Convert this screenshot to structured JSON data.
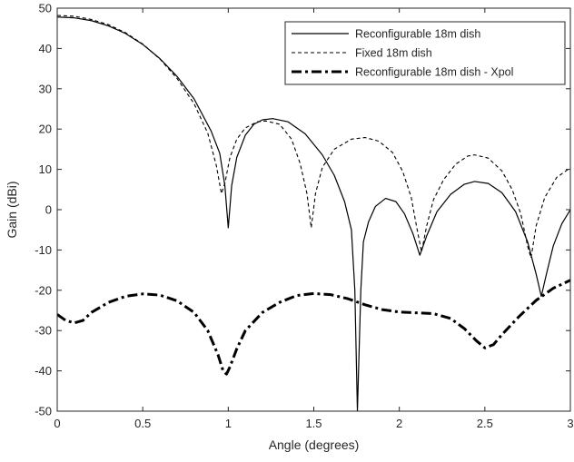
{
  "chart_data": {
    "type": "line",
    "title": "",
    "xlabel": "Angle (degrees)",
    "ylabel": "Gain (dBi)",
    "xlim": [
      0,
      3
    ],
    "ylim": [
      -50,
      50
    ],
    "xticks": [
      0,
      0.5,
      1,
      1.5,
      2,
      2.5,
      3
    ],
    "yticks": [
      -50,
      -40,
      -30,
      -20,
      -10,
      0,
      10,
      20,
      30,
      40,
      50
    ],
    "xtick_labels": [
      "0",
      "0.5",
      "1",
      "1.5",
      "2",
      "2.5",
      "3"
    ],
    "ytick_labels": [
      "-50",
      "-40",
      "-30",
      "-20",
      "-10",
      "0",
      "10",
      "20",
      "30",
      "40",
      "50"
    ],
    "grid": false,
    "legend_position": "top-right",
    "series": [
      {
        "name": "Reconfigurable 18m dish",
        "style": "solid",
        "color": "#000000",
        "points": [
          [
            0,
            47.8
          ],
          [
            0.1,
            47.6
          ],
          [
            0.2,
            46.9
          ],
          [
            0.3,
            45.6
          ],
          [
            0.4,
            43.7
          ],
          [
            0.5,
            41.0
          ],
          [
            0.6,
            37.5
          ],
          [
            0.7,
            33.1
          ],
          [
            0.8,
            27.5
          ],
          [
            0.9,
            19.5
          ],
          [
            0.95,
            14.0
          ],
          [
            0.98,
            6.0
          ],
          [
            1.0,
            -4.5
          ],
          [
            1.02,
            6.0
          ],
          [
            1.05,
            13.0
          ],
          [
            1.1,
            18.5
          ],
          [
            1.15,
            21.2
          ],
          [
            1.2,
            22.3
          ],
          [
            1.26,
            22.6
          ],
          [
            1.35,
            21.8
          ],
          [
            1.45,
            18.8
          ],
          [
            1.55,
            13.6
          ],
          [
            1.62,
            8.5
          ],
          [
            1.68,
            2.0
          ],
          [
            1.72,
            -5.0
          ],
          [
            1.74,
            -20.0
          ],
          [
            1.755,
            -50.0
          ],
          [
            1.775,
            -20.0
          ],
          [
            1.79,
            -8.0
          ],
          [
            1.82,
            -3.0
          ],
          [
            1.86,
            0.8
          ],
          [
            1.92,
            2.8
          ],
          [
            1.98,
            2.0
          ],
          [
            2.03,
            -1.0
          ],
          [
            2.08,
            -6.0
          ],
          [
            2.12,
            -11.3
          ],
          [
            2.16,
            -6.5
          ],
          [
            2.22,
            -0.5
          ],
          [
            2.3,
            3.8
          ],
          [
            2.38,
            6.3
          ],
          [
            2.44,
            7.0
          ],
          [
            2.52,
            6.5
          ],
          [
            2.6,
            4.2
          ],
          [
            2.68,
            -0.5
          ],
          [
            2.75,
            -8.0
          ],
          [
            2.8,
            -16.0
          ],
          [
            2.83,
            -21.5
          ],
          [
            2.86,
            -16.0
          ],
          [
            2.9,
            -9.0
          ],
          [
            2.95,
            -3.5
          ],
          [
            3.0,
            0.0
          ]
        ]
      },
      {
        "name": "Fixed 18m dish",
        "style": "dashed",
        "color": "#000000",
        "points": [
          [
            0,
            48.2
          ],
          [
            0.1,
            48.0
          ],
          [
            0.2,
            47.2
          ],
          [
            0.3,
            45.9
          ],
          [
            0.4,
            43.9
          ],
          [
            0.5,
            41.1
          ],
          [
            0.6,
            37.4
          ],
          [
            0.7,
            32.6
          ],
          [
            0.8,
            26.3
          ],
          [
            0.88,
            19.0
          ],
          [
            0.93,
            11.0
          ],
          [
            0.96,
            4.0
          ],
          [
            0.98,
            6.5
          ],
          [
            1.01,
            13.0
          ],
          [
            1.05,
            17.5
          ],
          [
            1.1,
            20.3
          ],
          [
            1.17,
            21.8
          ],
          [
            1.22,
            22.0
          ],
          [
            1.3,
            21.2
          ],
          [
            1.37,
            17.5
          ],
          [
            1.42,
            11.5
          ],
          [
            1.46,
            4.0
          ],
          [
            1.485,
            -4.5
          ],
          [
            1.51,
            4.0
          ],
          [
            1.55,
            10.5
          ],
          [
            1.62,
            15.0
          ],
          [
            1.72,
            17.5
          ],
          [
            1.8,
            17.9
          ],
          [
            1.88,
            17.0
          ],
          [
            1.96,
            14.2
          ],
          [
            2.02,
            9.5
          ],
          [
            2.07,
            3.0
          ],
          [
            2.1,
            -4.0
          ],
          [
            2.13,
            -10.5
          ],
          [
            2.16,
            -4.0
          ],
          [
            2.2,
            2.5
          ],
          [
            2.26,
            7.5
          ],
          [
            2.33,
            11.3
          ],
          [
            2.4,
            13.3
          ],
          [
            2.44,
            13.6
          ],
          [
            2.52,
            12.8
          ],
          [
            2.6,
            9.6
          ],
          [
            2.66,
            5.0
          ],
          [
            2.71,
            -1.0
          ],
          [
            2.75,
            -9.0
          ],
          [
            2.77,
            -12.0
          ],
          [
            2.8,
            -4.0
          ],
          [
            2.85,
            3.0
          ],
          [
            2.92,
            8.0
          ],
          [
            3.0,
            10.4
          ]
        ]
      },
      {
        "name": "Reconfigurable 18m dish - Xpol",
        "style": "dashdot",
        "color": "#000000",
        "points": [
          [
            0,
            -26.0
          ],
          [
            0.05,
            -27.5
          ],
          [
            0.1,
            -28.1
          ],
          [
            0.15,
            -27.5
          ],
          [
            0.2,
            -25.5
          ],
          [
            0.3,
            -23.0
          ],
          [
            0.4,
            -21.5
          ],
          [
            0.5,
            -20.9
          ],
          [
            0.6,
            -21.2
          ],
          [
            0.7,
            -22.6
          ],
          [
            0.8,
            -25.5
          ],
          [
            0.88,
            -30.0
          ],
          [
            0.94,
            -36.0
          ],
          [
            0.97,
            -40.0
          ],
          [
            0.99,
            -40.8
          ],
          [
            1.01,
            -39.0
          ],
          [
            1.05,
            -34.5
          ],
          [
            1.1,
            -30.0
          ],
          [
            1.2,
            -25.5
          ],
          [
            1.3,
            -23.0
          ],
          [
            1.4,
            -21.3
          ],
          [
            1.5,
            -20.8
          ],
          [
            1.6,
            -21.1
          ],
          [
            1.7,
            -22.1
          ],
          [
            1.8,
            -23.6
          ],
          [
            1.9,
            -24.8
          ],
          [
            2.0,
            -25.4
          ],
          [
            2.1,
            -25.6
          ],
          [
            2.2,
            -25.8
          ],
          [
            2.3,
            -27.0
          ],
          [
            2.38,
            -29.5
          ],
          [
            2.45,
            -32.5
          ],
          [
            2.5,
            -34.3
          ],
          [
            2.55,
            -33.5
          ],
          [
            2.6,
            -31.0
          ],
          [
            2.7,
            -26.5
          ],
          [
            2.8,
            -22.5
          ],
          [
            2.9,
            -19.5
          ],
          [
            3.0,
            -17.5
          ]
        ]
      }
    ]
  }
}
